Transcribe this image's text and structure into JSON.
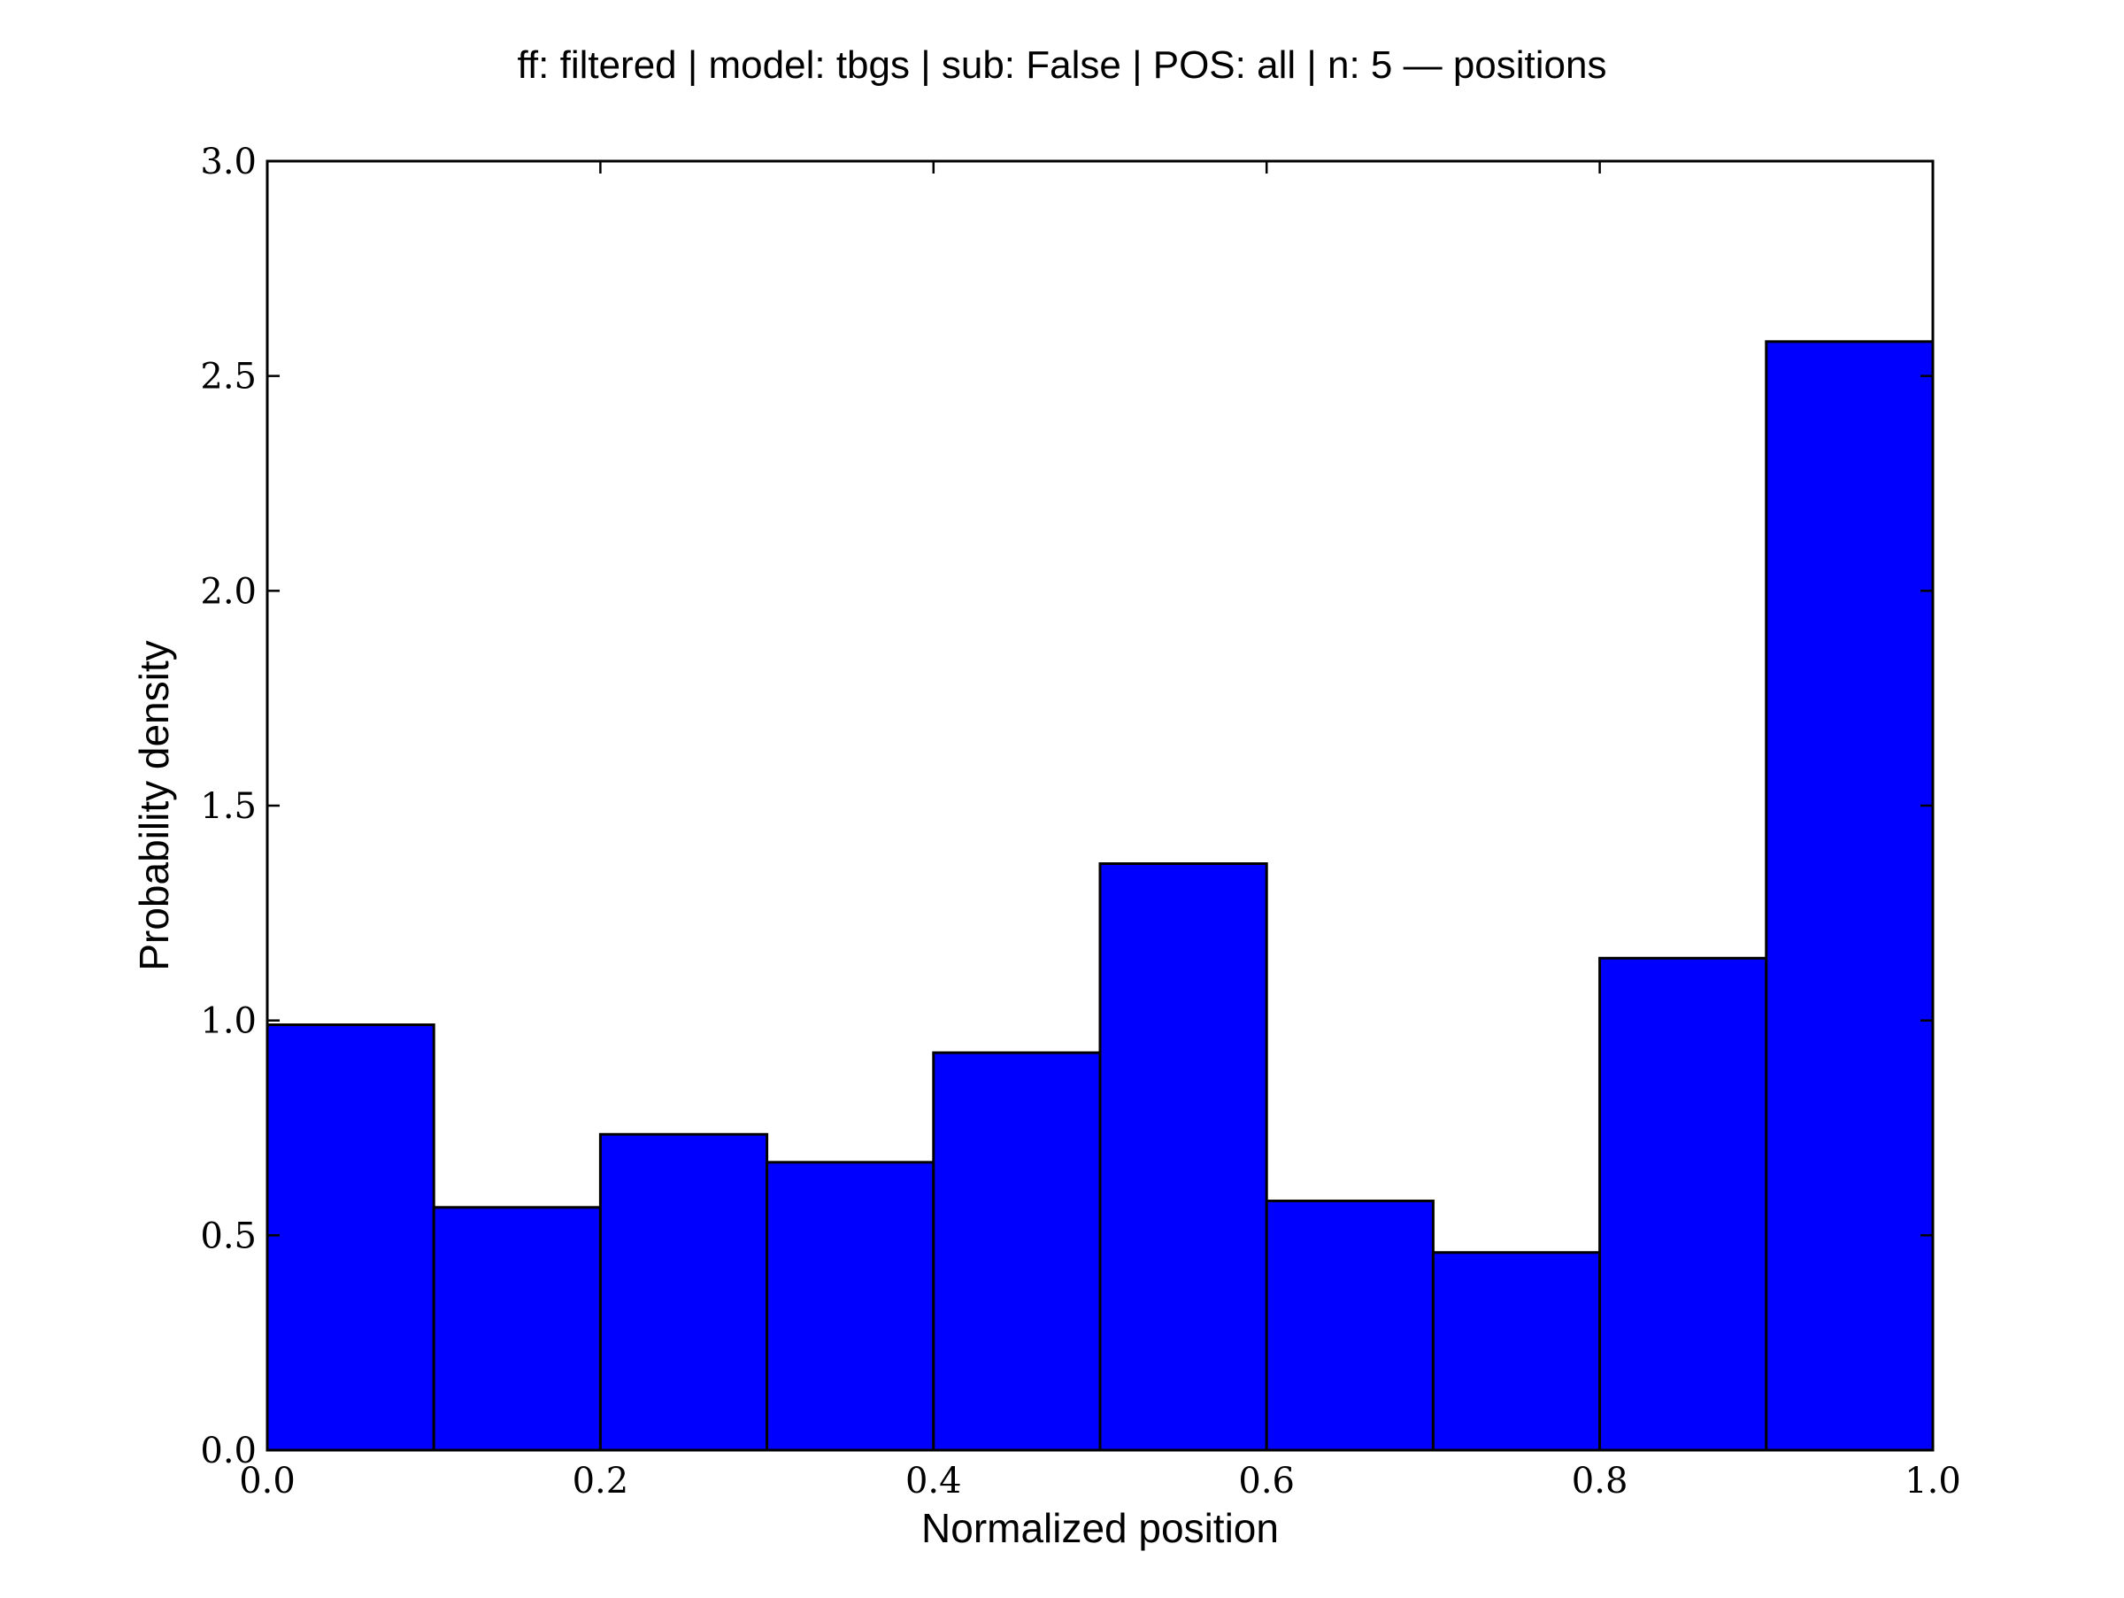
{
  "chart_data": {
    "type": "bar",
    "title": "ff: filtered | model: tbgs | sub: False | POS: all | n: 5 — positions",
    "xlabel": "Normalized position",
    "ylabel": "Probability density",
    "bin_edges": [
      0.0,
      0.1,
      0.2,
      0.3,
      0.4,
      0.5,
      0.6,
      0.7,
      0.8,
      0.9,
      1.0
    ],
    "values": [
      0.99,
      0.565,
      0.735,
      0.67,
      0.925,
      1.365,
      0.58,
      0.46,
      1.145,
      2.58
    ],
    "xlim": [
      0.0,
      1.0
    ],
    "ylim": [
      0.0,
      3.0
    ],
    "x_ticks": [
      "0.0",
      "0.2",
      "0.4",
      "0.6",
      "0.8",
      "1.0"
    ],
    "y_ticks": [
      "0.0",
      "0.5",
      "1.0",
      "1.5",
      "2.0",
      "2.5",
      "3.0"
    ],
    "bar_color": "#0000ff",
    "edge_color": "#000000",
    "grid": false,
    "legend": "none"
  }
}
